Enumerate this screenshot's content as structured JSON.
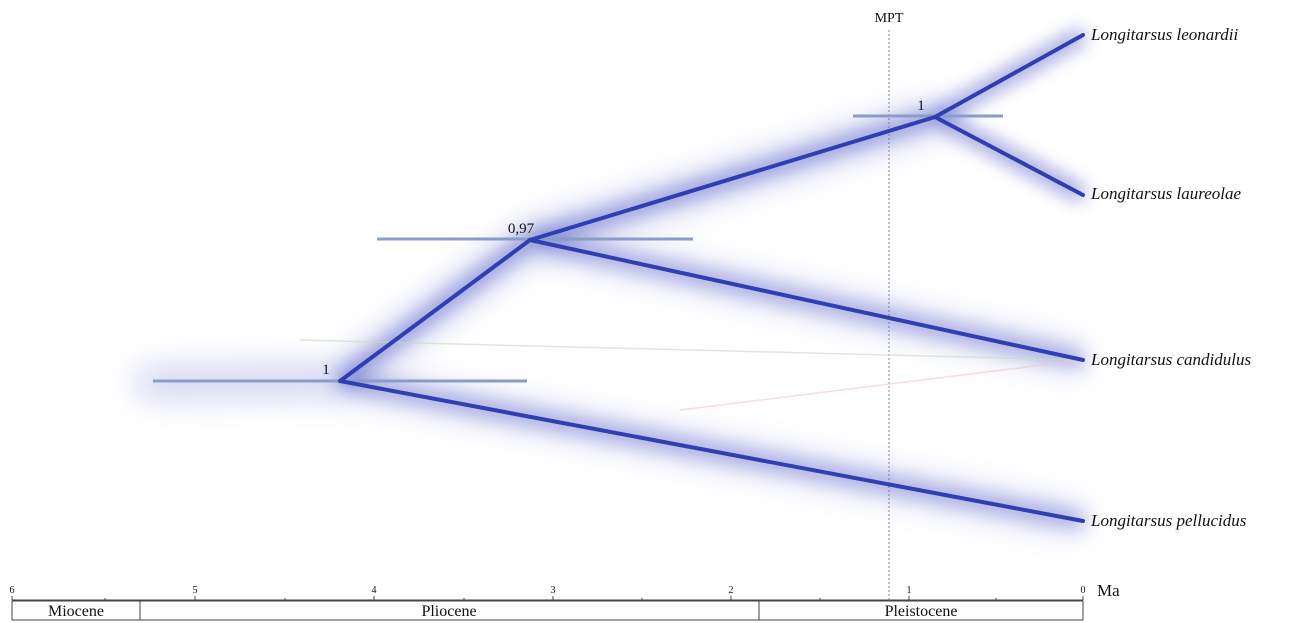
{
  "figure": {
    "mpt_label": "MPT",
    "axis_unit": "Ma",
    "axis_ticks": [
      "6",
      "5",
      "4",
      "3",
      "2",
      "1",
      "0"
    ],
    "epochs": [
      {
        "name": "Miocene"
      },
      {
        "name": "Pliocene"
      },
      {
        "name": "Pleistocene"
      }
    ],
    "taxa": [
      {
        "name": "Longitarsus leonardii"
      },
      {
        "name": "Longitarsus laureolae"
      },
      {
        "name": "Longitarsus candidulus"
      },
      {
        "name": "Longitarsus pellucidus"
      }
    ],
    "nodes": [
      {
        "support": "1"
      },
      {
        "support": "0,97"
      },
      {
        "support": "1"
      }
    ]
  },
  "colors": {
    "branch": "#2f3fb2",
    "cloud": "#4a56c8",
    "interval_bar": "#8a9cc8",
    "mpt_line": "#8a8a8a",
    "axis": "#444444"
  }
}
